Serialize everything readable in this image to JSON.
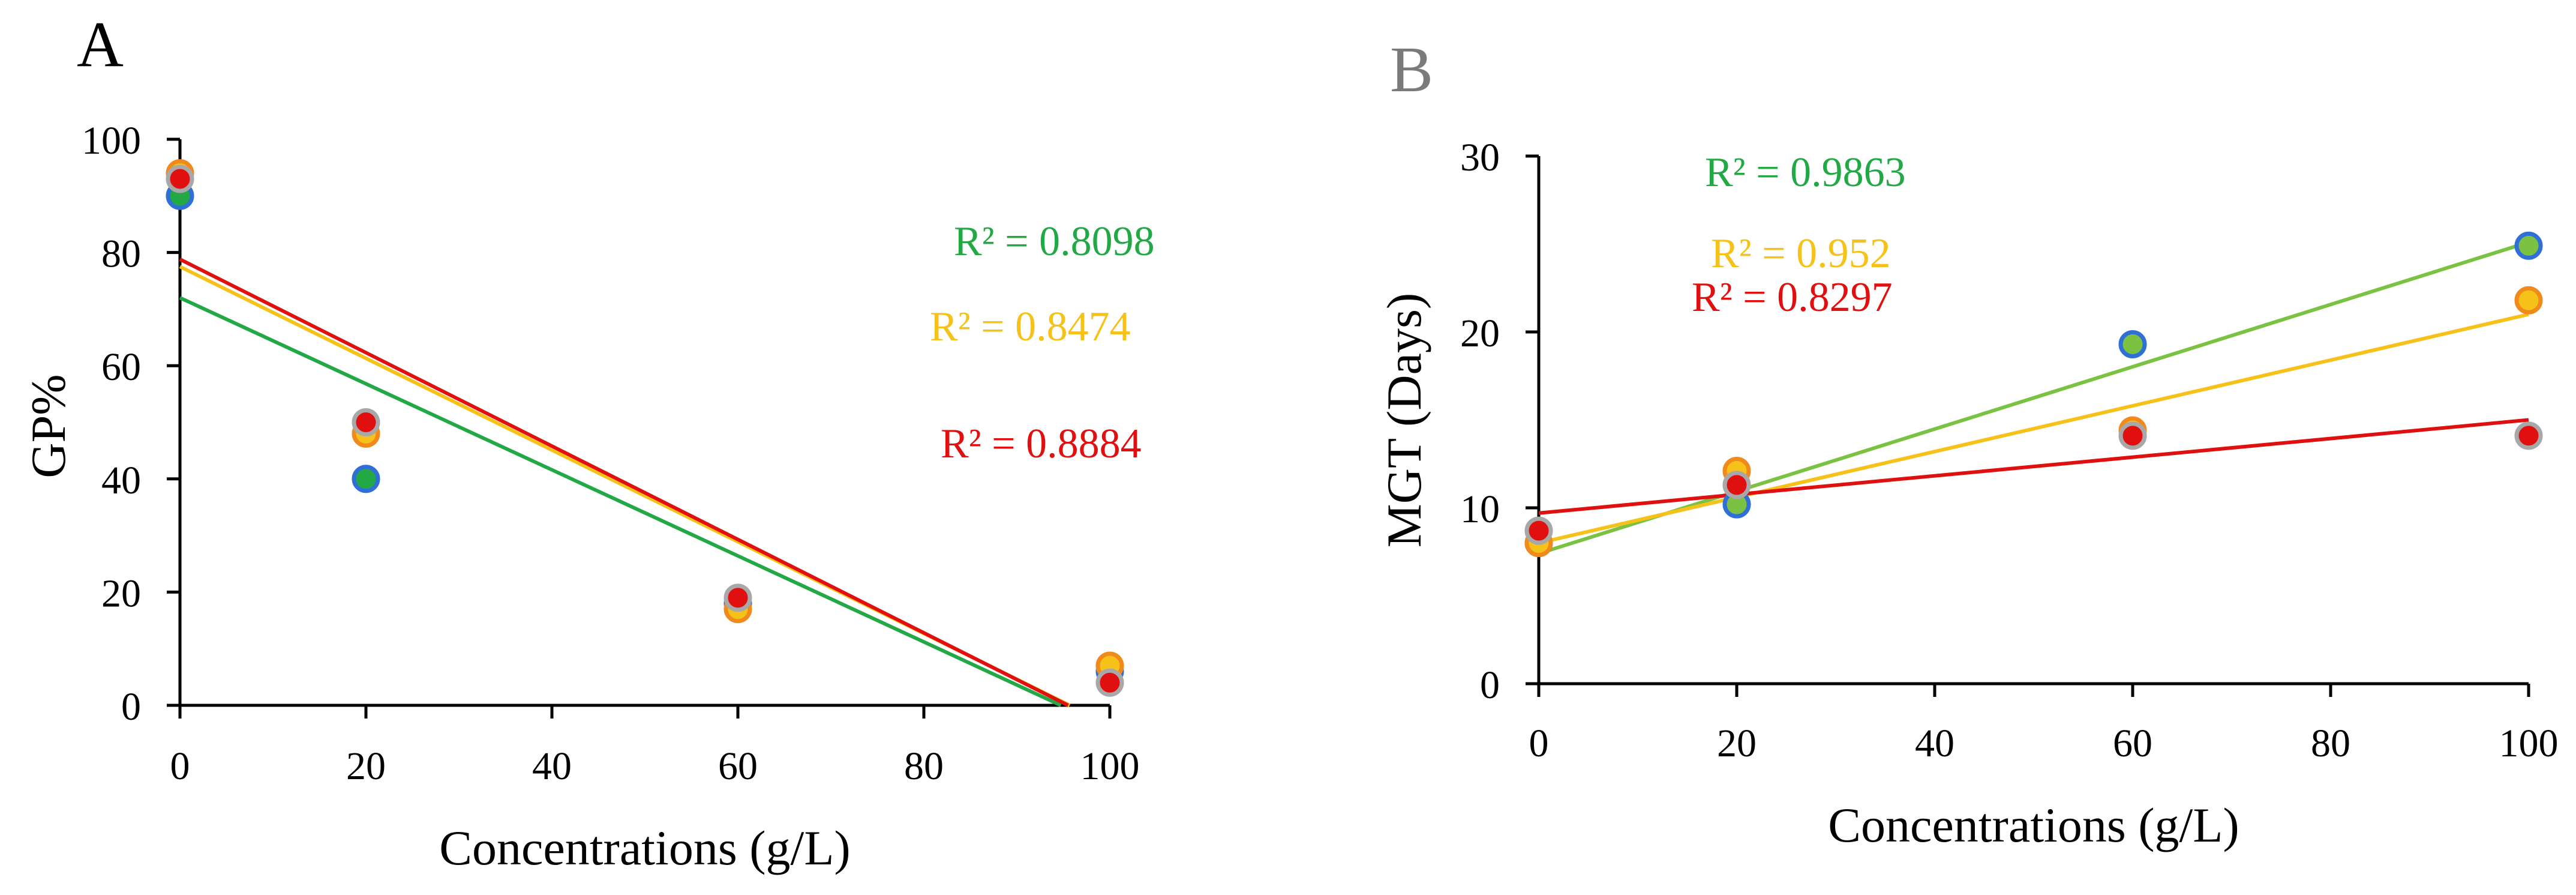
{
  "chart_data": [
    {
      "type": "scatter",
      "panel_label": "A",
      "xlabel": "Concentrations (g/L)",
      "ylabel": "GP%",
      "xlim": [
        0,
        100
      ],
      "ylim": [
        0,
        100
      ],
      "x_ticks": [
        "0",
        "20",
        "40",
        "60",
        "80",
        "100"
      ],
      "y_ticks": [
        "0",
        "20",
        "40",
        "60",
        "80",
        "100"
      ],
      "series": [
        {
          "name": "green",
          "color": "#22a845",
          "edge": "#2f6fd6",
          "x": [
            0,
            20,
            60,
            100
          ],
          "y": [
            90,
            40,
            18,
            6
          ],
          "trend": {
            "slope": -0.76,
            "intercept": 72
          },
          "r2_label": "R² = 0.8098"
        },
        {
          "name": "yellow",
          "color": "#f6c21a",
          "edge": "#f08a1c",
          "x": [
            0,
            20,
            60,
            100
          ],
          "y": [
            94,
            48,
            17,
            7
          ],
          "trend": {
            "slope": -0.81,
            "intercept": 77.5
          },
          "r2_label": "R² = 0.8474"
        },
        {
          "name": "red",
          "color": "#e01010",
          "edge": "#a8a8a8",
          "x": [
            0,
            20,
            60,
            100
          ],
          "y": [
            93,
            50,
            19,
            4
          ],
          "trend": {
            "slope": -0.825,
            "intercept": 78.8
          },
          "r2_label": "R² = 0.8884"
        }
      ]
    },
    {
      "type": "scatter",
      "panel_label": "B",
      "xlabel": "Concentrations (g/L)",
      "ylabel": "MGT (Days)",
      "xlim": [
        0,
        100
      ],
      "ylim": [
        0,
        30
      ],
      "x_ticks": [
        "0",
        "20",
        "40",
        "60",
        "80",
        "100"
      ],
      "y_ticks": [
        "0",
        "10",
        "20",
        "30"
      ],
      "series": [
        {
          "name": "green",
          "color": "#7cc242",
          "edge": "#2f6fd6",
          "x": [
            0,
            20,
            60,
            100
          ],
          "y": [
            8,
            10.2,
            19.3,
            24.9
          ],
          "trend": {
            "slope": 0.177,
            "intercept": 7.4
          },
          "r2_label": "R² = 0.9863"
        },
        {
          "name": "yellow",
          "color": "#f6c21a",
          "edge": "#f08a1c",
          "x": [
            0,
            20,
            60,
            100
          ],
          "y": [
            8,
            12.1,
            14.4,
            21.8
          ],
          "trend": {
            "slope": 0.13,
            "intercept": 8
          },
          "r2_label": "R² = 0.952"
        },
        {
          "name": "red",
          "color": "#e01010",
          "edge": "#a8a8a8",
          "x": [
            0,
            20,
            60,
            100
          ],
          "y": [
            8.7,
            11.3,
            14.1,
            14.1
          ],
          "trend": {
            "slope": 0.053,
            "intercept": 9.7
          },
          "r2_label": "R² = 0.8297"
        }
      ]
    }
  ]
}
